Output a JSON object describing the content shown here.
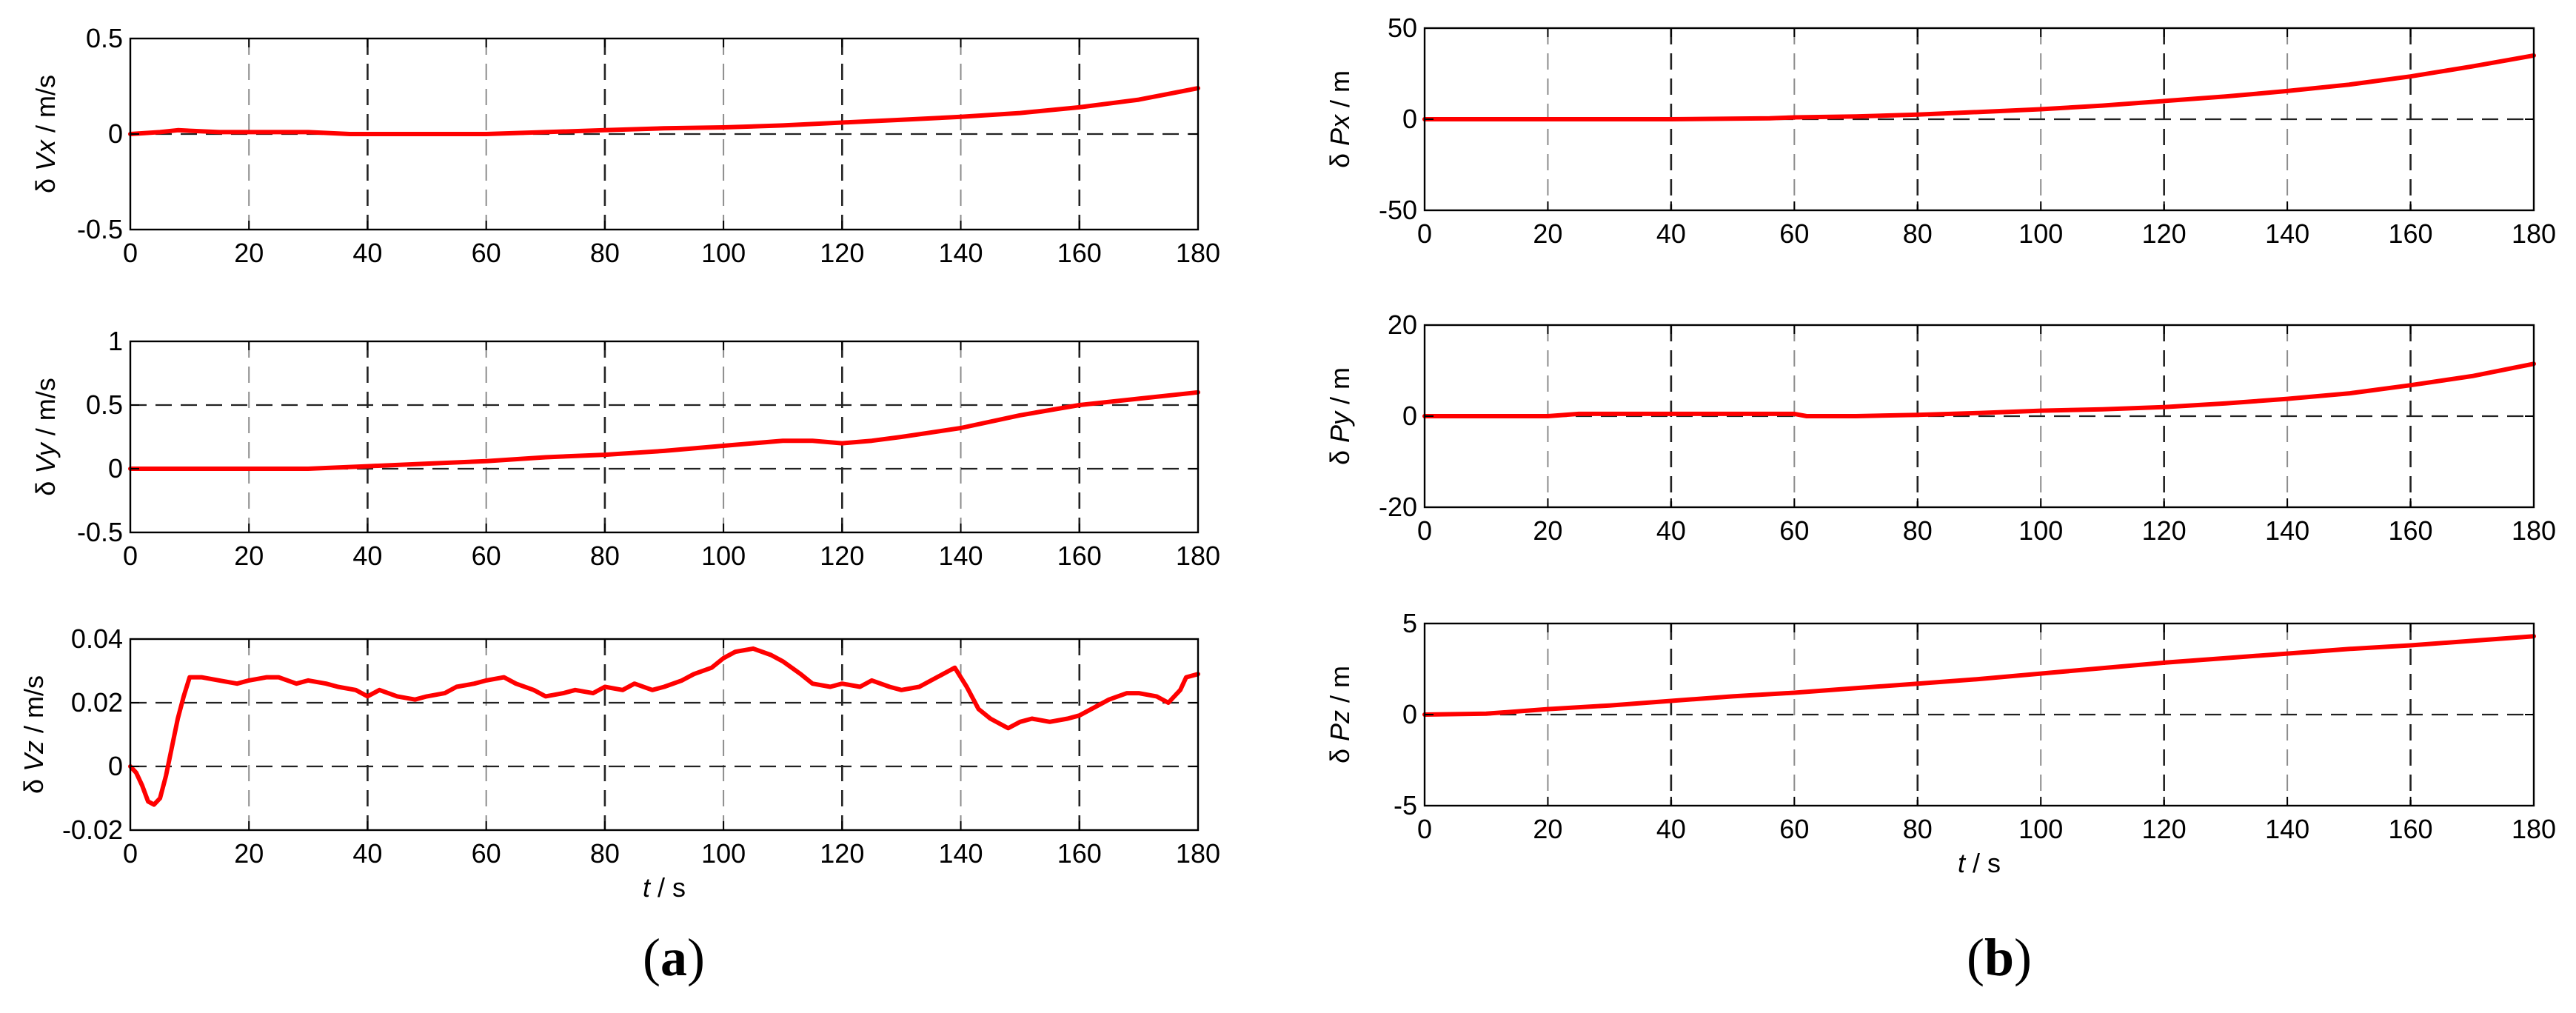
{
  "figure": {
    "panel_labels": [
      {
        "open": "(",
        "letter": "a",
        "close": ")"
      },
      {
        "open": "(",
        "letter": "b",
        "close": ")"
      }
    ]
  },
  "chart_data": [
    {
      "type": "line",
      "panel": "a",
      "ylabel": "δ Vx / m/s",
      "xlabel": "",
      "xlim": [
        0,
        180
      ],
      "ylim": [
        -0.5,
        0.5
      ],
      "xticks": [
        "0",
        "20",
        "40",
        "60",
        "80",
        "100",
        "120",
        "140",
        "160",
        "180"
      ],
      "yticks": [
        "-0.5",
        "0",
        "0.5"
      ],
      "xgrid_values": [
        20,
        40,
        60,
        80,
        100,
        120,
        140,
        160
      ],
      "ygrid_values": [
        0
      ],
      "series": [
        {
          "color": "#ff0000",
          "x": [
            0,
            5,
            8,
            15,
            30,
            37,
            40,
            60,
            70,
            80,
            90,
            100,
            110,
            120,
            130,
            140,
            150,
            160,
            170,
            180
          ],
          "y": [
            0,
            0.01,
            0.02,
            0.01,
            0.01,
            0,
            0,
            0,
            0.01,
            0.02,
            0.03,
            0.035,
            0.045,
            0.06,
            0.075,
            0.09,
            0.11,
            0.14,
            0.18,
            0.24
          ]
        }
      ]
    },
    {
      "type": "line",
      "panel": "a",
      "ylabel": "δ Vy / m/s",
      "xlabel": "",
      "xlim": [
        0,
        180
      ],
      "ylim": [
        -0.5,
        1
      ],
      "xticks": [
        "0",
        "20",
        "40",
        "60",
        "80",
        "100",
        "120",
        "140",
        "160",
        "180"
      ],
      "yticks": [
        "-0.5",
        "0",
        "0.5",
        "1"
      ],
      "xgrid_values": [
        20,
        40,
        60,
        80,
        100,
        120,
        140,
        160
      ],
      "ygrid_values": [
        0,
        0.5
      ],
      "series": [
        {
          "color": "#ff0000",
          "x": [
            0,
            20,
            30,
            40,
            50,
            60,
            70,
            80,
            90,
            100,
            110,
            115,
            120,
            125,
            130,
            140,
            150,
            160,
            170,
            180
          ],
          "y": [
            0,
            0,
            0,
            0.02,
            0.04,
            0.06,
            0.09,
            0.11,
            0.14,
            0.18,
            0.22,
            0.22,
            0.2,
            0.22,
            0.25,
            0.32,
            0.42,
            0.5,
            0.55,
            0.6
          ]
        }
      ]
    },
    {
      "type": "line",
      "panel": "a",
      "ylabel": "δ Vz / m/s",
      "xlabel": "t / s",
      "xlim": [
        0,
        180
      ],
      "ylim": [
        -0.02,
        0.04
      ],
      "xticks": [
        "0",
        "20",
        "40",
        "60",
        "80",
        "100",
        "120",
        "140",
        "160",
        "180"
      ],
      "yticks": [
        "-0.02",
        "0",
        "0.02",
        "0.04"
      ],
      "xgrid_values": [
        20,
        40,
        60,
        80,
        100,
        120,
        140,
        160
      ],
      "ygrid_values": [
        0,
        0.02
      ],
      "series": [
        {
          "color": "#ff0000",
          "x": [
            0,
            1,
            2,
            3,
            4,
            5,
            6,
            7,
            8,
            9,
            10,
            12,
            15,
            18,
            20,
            23,
            25,
            28,
            30,
            33,
            35,
            38,
            40,
            42,
            45,
            48,
            50,
            53,
            55,
            58,
            60,
            63,
            65,
            68,
            70,
            73,
            75,
            78,
            80,
            83,
            85,
            88,
            90,
            93,
            95,
            98,
            100,
            102,
            105,
            108,
            110,
            113,
            115,
            118,
            120,
            123,
            125,
            128,
            130,
            133,
            135,
            138,
            139,
            141,
            143,
            145,
            147,
            148,
            150,
            152,
            155,
            158,
            160,
            163,
            165,
            168,
            170,
            173,
            175,
            177,
            178,
            180
          ],
          "y": [
            0,
            -0.002,
            -0.006,
            -0.011,
            -0.012,
            -0.01,
            -0.003,
            0.006,
            0.015,
            0.022,
            0.028,
            0.028,
            0.027,
            0.026,
            0.027,
            0.028,
            0.028,
            0.026,
            0.027,
            0.026,
            0.025,
            0.024,
            0.022,
            0.024,
            0.022,
            0.021,
            0.022,
            0.023,
            0.025,
            0.026,
            0.027,
            0.028,
            0.026,
            0.024,
            0.022,
            0.023,
            0.024,
            0.023,
            0.025,
            0.024,
            0.026,
            0.024,
            0.025,
            0.027,
            0.029,
            0.031,
            0.034,
            0.036,
            0.037,
            0.035,
            0.033,
            0.029,
            0.026,
            0.025,
            0.026,
            0.025,
            0.027,
            0.025,
            0.024,
            0.025,
            0.027,
            0.03,
            0.031,
            0.025,
            0.018,
            0.015,
            0.013,
            0.012,
            0.014,
            0.015,
            0.014,
            0.015,
            0.016,
            0.019,
            0.021,
            0.023,
            0.023,
            0.022,
            0.02,
            0.024,
            0.028,
            0.029
          ]
        }
      ]
    },
    {
      "type": "line",
      "panel": "b",
      "ylabel": "δ Px / m",
      "xlabel": "",
      "xlim": [
        0,
        180
      ],
      "ylim": [
        -50,
        50
      ],
      "xticks": [
        "0",
        "20",
        "40",
        "60",
        "80",
        "100",
        "120",
        "140",
        "160",
        "180"
      ],
      "yticks": [
        "-50",
        "0",
        "50"
      ],
      "xgrid_values": [
        20,
        40,
        60,
        80,
        100,
        120,
        140,
        160
      ],
      "ygrid_values": [
        0
      ],
      "series": [
        {
          "color": "#ff0000",
          "x": [
            0,
            20,
            40,
            56,
            60,
            70,
            80,
            90,
            100,
            110,
            120,
            130,
            140,
            150,
            160,
            170,
            180
          ],
          "y": [
            0,
            0,
            0,
            0.5,
            1,
            1.5,
            2.5,
            4,
            5.5,
            7.5,
            10,
            12.5,
            15.5,
            19,
            23.5,
            29,
            35
          ]
        }
      ]
    },
    {
      "type": "line",
      "panel": "b",
      "ylabel": "δ Py / m",
      "xlabel": "",
      "xlim": [
        0,
        180
      ],
      "ylim": [
        -20,
        20
      ],
      "xticks": [
        "0",
        "20",
        "40",
        "60",
        "80",
        "100",
        "120",
        "140",
        "160",
        "180"
      ],
      "yticks": [
        "-20",
        "0",
        "20"
      ],
      "xgrid_values": [
        20,
        40,
        60,
        80,
        100,
        120,
        140,
        160
      ],
      "ygrid_values": [
        0
      ],
      "series": [
        {
          "color": "#ff0000",
          "x": [
            0,
            20,
            25,
            40,
            50,
            60,
            62,
            70,
            80,
            90,
            100,
            110,
            120,
            130,
            140,
            150,
            160,
            170,
            180
          ],
          "y": [
            0,
            0,
            0.5,
            0.5,
            0.5,
            0.5,
            0,
            0,
            0.3,
            0.7,
            1.2,
            1.5,
            2,
            2.8,
            3.8,
            5,
            6.8,
            8.8,
            11.5
          ]
        }
      ]
    },
    {
      "type": "line",
      "panel": "b",
      "ylabel": "δ Pz / m",
      "xlabel": "t / s",
      "xlim": [
        0,
        180
      ],
      "ylim": [
        -5,
        5
      ],
      "xticks": [
        "0",
        "20",
        "40",
        "60",
        "80",
        "100",
        "120",
        "140",
        "160",
        "180"
      ],
      "yticks": [
        "-5",
        "0",
        "5"
      ],
      "xgrid_values": [
        20,
        40,
        60,
        80,
        100,
        120,
        140,
        160
      ],
      "ygrid_values": [
        0
      ],
      "series": [
        {
          "color": "#ff0000",
          "x": [
            0,
            10,
            20,
            30,
            40,
            50,
            60,
            70,
            80,
            90,
            100,
            110,
            120,
            130,
            140,
            150,
            160,
            170,
            180
          ],
          "y": [
            0,
            0.05,
            0.3,
            0.5,
            0.75,
            1,
            1.2,
            1.45,
            1.7,
            1.95,
            2.25,
            2.55,
            2.85,
            3.1,
            3.35,
            3.6,
            3.8,
            4.05,
            4.3
          ]
        }
      ]
    }
  ]
}
